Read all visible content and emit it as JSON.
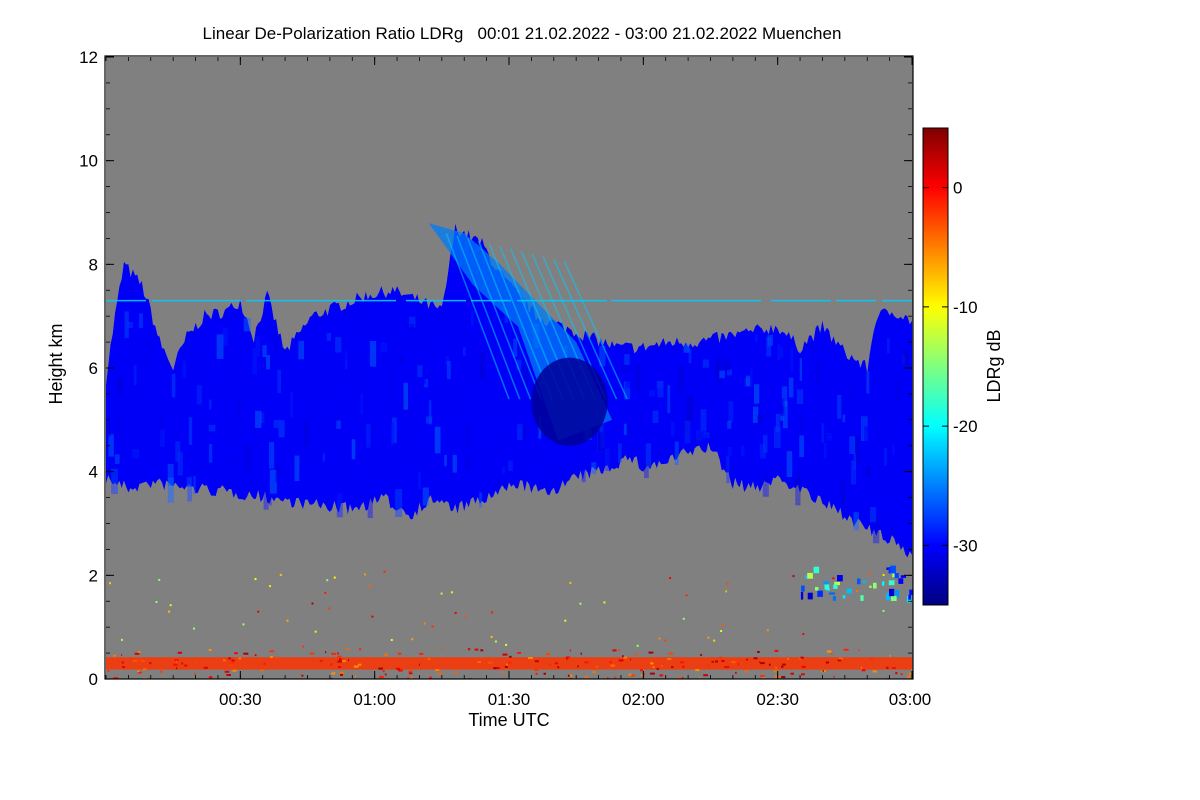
{
  "chart_data": {
    "type": "heatmap",
    "title": "Linear De-Polarization Ratio LDRg   00:01 21.02.2022 - 03:00 21.02.2022 Muenchen",
    "xlabel": "Time UTC",
    "ylabel": "Height km",
    "xlim": [
      0,
      180
    ],
    "ylim": [
      0,
      12
    ],
    "x_ticks": [
      {
        "value": 30,
        "label": "00:30"
      },
      {
        "value": 60,
        "label": "01:00"
      },
      {
        "value": 90,
        "label": "01:30"
      },
      {
        "value": 120,
        "label": "02:00"
      },
      {
        "value": 150,
        "label": "02:30"
      },
      {
        "value": 180,
        "label": "03:00"
      }
    ],
    "y_ticks": [
      {
        "value": 0,
        "label": "0"
      },
      {
        "value": 2,
        "label": "2"
      },
      {
        "value": 4,
        "label": "4"
      },
      {
        "value": 6,
        "label": "6"
      },
      {
        "value": 8,
        "label": "8"
      },
      {
        "value": 10,
        "label": "10"
      },
      {
        "value": 12,
        "label": "12"
      }
    ],
    "colorbar": {
      "label": "LDRg dB",
      "range": [
        -35,
        5
      ],
      "ticks": [
        {
          "value": 0,
          "label": "0"
        },
        {
          "value": -10,
          "label": "-10"
        },
        {
          "value": -20,
          "label": "-20"
        },
        {
          "value": -30,
          "label": "-30"
        }
      ],
      "colors": [
        "#00007f",
        "#0000ff",
        "#007fff",
        "#00ffff",
        "#7fff7f",
        "#ffff00",
        "#ff7f00",
        "#ff0000",
        "#7f0000"
      ]
    },
    "background_color": "#808080",
    "cloud_layer": {
      "typical_ldr_db": -30,
      "base_km": [
        [
          0,
          4.0
        ],
        [
          5,
          3.8
        ],
        [
          10,
          3.9
        ],
        [
          20,
          3.8
        ],
        [
          30,
          3.7
        ],
        [
          38,
          3.6
        ],
        [
          45,
          3.5
        ],
        [
          55,
          3.4
        ],
        [
          62,
          3.6
        ],
        [
          68,
          3.3
        ],
        [
          73,
          3.6
        ],
        [
          78,
          3.4
        ],
        [
          85,
          3.6
        ],
        [
          92,
          3.9
        ],
        [
          98,
          3.7
        ],
        [
          105,
          4.0
        ],
        [
          112,
          4.2
        ],
        [
          117,
          4.4
        ],
        [
          120,
          4.2
        ],
        [
          125,
          4.3
        ],
        [
          130,
          4.5
        ],
        [
          135,
          4.6
        ],
        [
          140,
          3.9
        ],
        [
          145,
          3.8
        ],
        [
          150,
          4.0
        ],
        [
          155,
          3.8
        ],
        [
          160,
          3.5
        ],
        [
          165,
          3.3
        ],
        [
          170,
          3.0
        ],
        [
          175,
          2.8
        ],
        [
          180,
          2.5
        ]
      ],
      "top_km": [
        [
          0,
          5.8
        ],
        [
          2,
          7.0
        ],
        [
          4,
          8.0
        ],
        [
          8,
          7.6
        ],
        [
          10,
          7.1
        ],
        [
          12,
          6.5
        ],
        [
          15,
          6.0
        ],
        [
          18,
          6.6
        ],
        [
          22,
          7.0
        ],
        [
          27,
          7.1
        ],
        [
          30,
          7.3
        ],
        [
          33,
          6.6
        ],
        [
          36,
          7.4
        ],
        [
          40,
          6.3
        ],
        [
          46,
          7.0
        ],
        [
          52,
          7.2
        ],
        [
          58,
          7.4
        ],
        [
          64,
          7.5
        ],
        [
          70,
          7.3
        ],
        [
          75,
          7.1
        ],
        [
          78,
          8.7
        ],
        [
          84,
          8.4
        ],
        [
          88,
          7.8
        ],
        [
          92,
          7.4
        ],
        [
          96,
          7.0
        ],
        [
          102,
          6.8
        ],
        [
          108,
          6.6
        ],
        [
          114,
          6.4
        ],
        [
          120,
          6.4
        ],
        [
          126,
          6.5
        ],
        [
          132,
          6.5
        ],
        [
          138,
          6.6
        ],
        [
          144,
          6.7
        ],
        [
          150,
          6.8
        ],
        [
          155,
          6.4
        ],
        [
          160,
          6.8
        ],
        [
          165,
          6.3
        ],
        [
          170,
          6.0
        ],
        [
          172,
          7.0
        ],
        [
          176,
          7.1
        ],
        [
          180,
          6.9
        ]
      ]
    },
    "fall_streak": {
      "typical_ldr_db": -25,
      "x_range": [
        72,
        105
      ],
      "top_km": 8.8,
      "bottom_km": 5.0
    },
    "dense_core": {
      "typical_ldr_db": -34,
      "x_range": [
        95,
        112
      ],
      "height_range_km": [
        4.5,
        6.2
      ]
    },
    "thin_line": {
      "ldr_db": -22,
      "height_km": 7.3,
      "x_range": [
        0,
        180
      ]
    },
    "surface_layer": {
      "ldr_db": -2,
      "height_km": 0.3,
      "x_range": [
        0,
        180
      ]
    }
  }
}
